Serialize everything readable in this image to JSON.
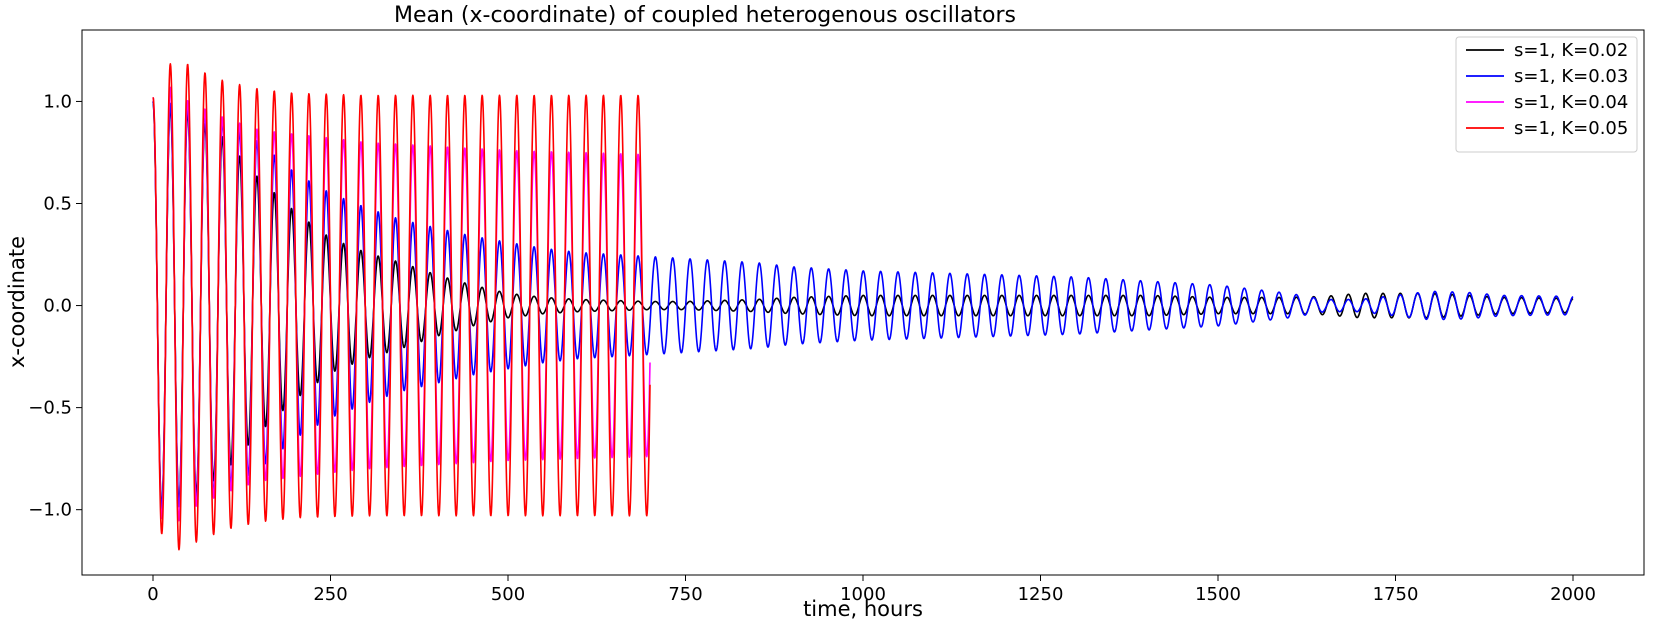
{
  "chart_data": {
    "type": "line",
    "title": "Mean (x-coordinate) of coupled heterogenous oscillators",
    "xlabel": "time, hours",
    "ylabel": "x-coordinate",
    "xlim": [
      -100,
      2100
    ],
    "ylim": [
      -1.32,
      1.35
    ],
    "xticks": [
      0,
      250,
      500,
      750,
      1000,
      1250,
      1500,
      1750,
      2000
    ],
    "xtick_labels": [
      "0",
      "250",
      "500",
      "750",
      "1000",
      "1250",
      "1500",
      "1750",
      "2000"
    ],
    "yticks": [
      -1.0,
      -0.5,
      0.0,
      0.5,
      1.0
    ],
    "ytick_labels": [
      "−1.0",
      "−0.5",
      "0.0",
      "0.5",
      "1.0"
    ],
    "grid": false,
    "legend_position": "top-right",
    "series": [
      {
        "name": "s=1, K=0.02",
        "color": "#000000",
        "period_hours": 24.4,
        "t_end": 2000,
        "envelope": [
          [
            0,
            1.0
          ],
          [
            50,
            0.95
          ],
          [
            100,
            0.82
          ],
          [
            150,
            0.62
          ],
          [
            200,
            0.46
          ],
          [
            250,
            0.33
          ],
          [
            300,
            0.26
          ],
          [
            350,
            0.21
          ],
          [
            400,
            0.15
          ],
          [
            450,
            0.1
          ],
          [
            500,
            0.06
          ],
          [
            550,
            0.04
          ],
          [
            600,
            0.03
          ],
          [
            650,
            0.025
          ],
          [
            700,
            0.02
          ],
          [
            750,
            0.02
          ],
          [
            800,
            0.025
          ],
          [
            850,
            0.03
          ],
          [
            900,
            0.04
          ],
          [
            1000,
            0.05
          ],
          [
            1100,
            0.05
          ],
          [
            1200,
            0.05
          ],
          [
            1300,
            0.05
          ],
          [
            1400,
            0.05
          ],
          [
            1500,
            0.04
          ],
          [
            1600,
            0.04
          ],
          [
            1650,
            0.045
          ],
          [
            1700,
            0.06
          ],
          [
            1750,
            0.06
          ],
          [
            1800,
            0.06
          ],
          [
            1850,
            0.05
          ],
          [
            1900,
            0.04
          ],
          [
            2000,
            0.035
          ]
        ]
      },
      {
        "name": "s=1, K=0.03",
        "color": "#0000ff",
        "period_hours": 24.4,
        "t_end": 2000,
        "envelope": [
          [
            0,
            1.0
          ],
          [
            50,
            0.98
          ],
          [
            100,
            0.9
          ],
          [
            150,
            0.8
          ],
          [
            200,
            0.65
          ],
          [
            250,
            0.55
          ],
          [
            300,
            0.48
          ],
          [
            350,
            0.42
          ],
          [
            400,
            0.38
          ],
          [
            450,
            0.34
          ],
          [
            500,
            0.31
          ],
          [
            550,
            0.28
          ],
          [
            600,
            0.26
          ],
          [
            650,
            0.25
          ],
          [
            700,
            0.24
          ],
          [
            750,
            0.23
          ],
          [
            800,
            0.22
          ],
          [
            850,
            0.21
          ],
          [
            900,
            0.19
          ],
          [
            950,
            0.18
          ],
          [
            1000,
            0.17
          ],
          [
            1100,
            0.16
          ],
          [
            1200,
            0.15
          ],
          [
            1300,
            0.14
          ],
          [
            1400,
            0.12
          ],
          [
            1500,
            0.1
          ],
          [
            1550,
            0.08
          ],
          [
            1600,
            0.06
          ],
          [
            1650,
            0.03
          ],
          [
            1700,
            0.03
          ],
          [
            1750,
            0.05
          ],
          [
            1800,
            0.07
          ],
          [
            1850,
            0.065
          ],
          [
            1900,
            0.05
          ],
          [
            2000,
            0.045
          ]
        ]
      },
      {
        "name": "s=1, K=0.04",
        "color": "#ff00ff",
        "period_hours": 24.4,
        "t_end": 700,
        "envelope": [
          [
            0,
            1.02
          ],
          [
            30,
            1.08
          ],
          [
            50,
            1.0
          ],
          [
            100,
            0.92
          ],
          [
            150,
            0.86
          ],
          [
            200,
            0.84
          ],
          [
            250,
            0.82
          ],
          [
            300,
            0.8
          ],
          [
            400,
            0.78
          ],
          [
            500,
            0.76
          ],
          [
            600,
            0.75
          ],
          [
            700,
            0.74
          ]
        ]
      },
      {
        "name": "s=1, K=0.05",
        "color": "#ff0000",
        "period_hours": 24.4,
        "t_end": 700,
        "envelope": [
          [
            0,
            1.02
          ],
          [
            20,
            1.18
          ],
          [
            40,
            1.2
          ],
          [
            60,
            1.16
          ],
          [
            100,
            1.1
          ],
          [
            150,
            1.06
          ],
          [
            200,
            1.04
          ],
          [
            300,
            1.03
          ],
          [
            500,
            1.03
          ],
          [
            700,
            1.03
          ]
        ]
      }
    ]
  }
}
